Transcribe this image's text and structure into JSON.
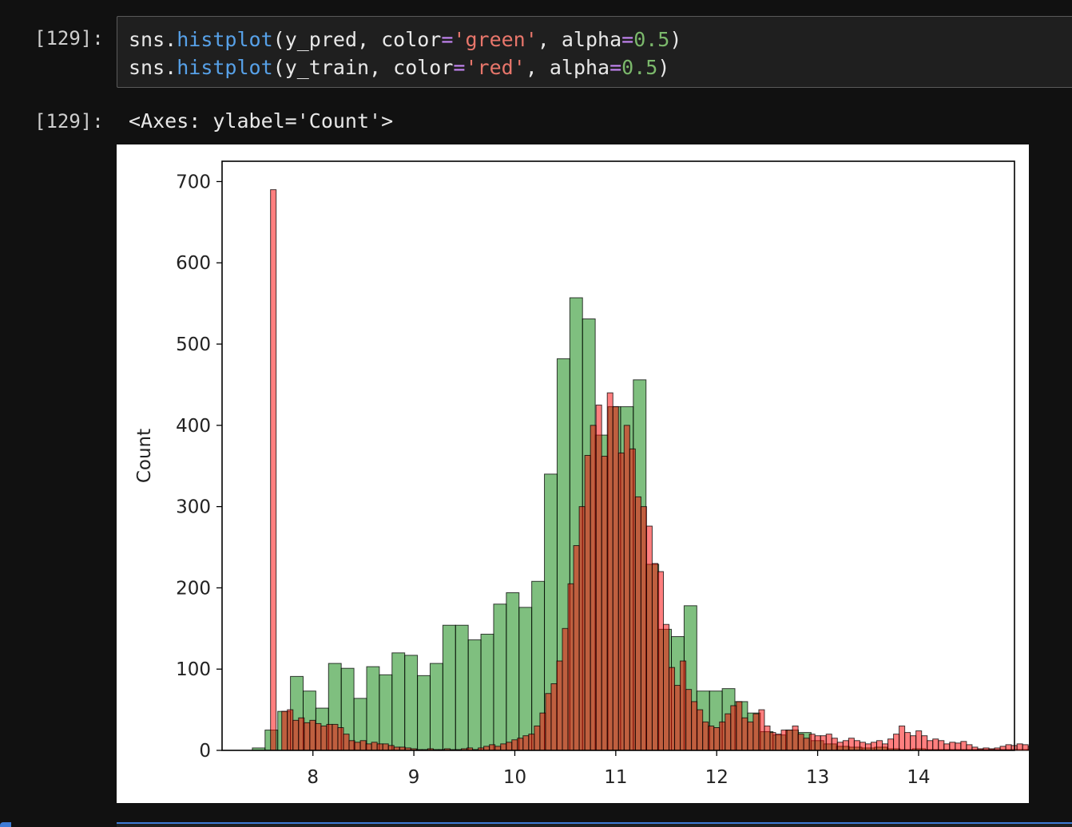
{
  "notebook": {
    "input_prompt": "[129]:",
    "output_prompt": "[129]:",
    "code_lines": [
      [
        {
          "t": "sns.",
          "c": "plain"
        },
        {
          "t": "histplot",
          "c": "fn"
        },
        {
          "t": "(y_pred, color",
          "c": "plain"
        },
        {
          "t": "=",
          "c": "op"
        },
        {
          "t": "'green'",
          "c": "str"
        },
        {
          "t": ", alpha",
          "c": "plain"
        },
        {
          "t": "=",
          "c": "op"
        },
        {
          "t": "0.5",
          "c": "num"
        },
        {
          "t": ")",
          "c": "plain"
        }
      ],
      [
        {
          "t": "sns.",
          "c": "plain"
        },
        {
          "t": "histplot",
          "c": "fn"
        },
        {
          "t": "(y_train, color",
          "c": "plain"
        },
        {
          "t": "=",
          "c": "op"
        },
        {
          "t": "'red'",
          "c": "str"
        },
        {
          "t": ", alpha",
          "c": "plain"
        },
        {
          "t": "=",
          "c": "op"
        },
        {
          "t": "0.5",
          "c": "num"
        },
        {
          "t": ")",
          "c": "plain"
        }
      ]
    ],
    "output_text": "<Axes: ylabel='Count'>"
  },
  "chart_data": {
    "type": "bar",
    "title": "",
    "xlabel": "",
    "ylabel": "Count",
    "xlim": [
      7.1,
      14.95
    ],
    "ylim": [
      0,
      725
    ],
    "xticks": [
      8,
      9,
      10,
      11,
      12,
      13,
      14
    ],
    "yticks": [
      0,
      100,
      200,
      300,
      400,
      500,
      600,
      700
    ],
    "grid": false,
    "legend": "none",
    "series": [
      {
        "name": "y_pred",
        "color": "#008000",
        "alpha": 0.5,
        "bin_start": 7.4,
        "bin_width": 0.1258,
        "values": [
          3,
          25,
          48,
          91,
          73,
          52,
          107,
          101,
          64,
          103,
          93,
          120,
          117,
          92,
          107,
          154,
          154,
          136,
          143,
          180,
          194,
          176,
          208,
          340,
          482,
          557,
          531,
          388,
          423,
          423,
          456,
          229,
          149,
          140,
          178,
          73,
          73,
          76,
          60,
          46,
          23,
          19,
          25,
          22,
          12,
          8,
          5,
          4,
          3,
          4,
          2,
          1,
          2,
          1,
          1,
          1,
          1,
          1,
          1,
          1,
          1,
          1
        ]
      },
      {
        "name": "y_train",
        "color": "#ff0000",
        "alpha": 0.5,
        "bin_start": 7.58,
        "bin_width": 0.0556,
        "values": [
          690,
          0,
          48,
          50,
          37,
          40,
          34,
          37,
          33,
          30,
          32,
          32,
          28,
          20,
          12,
          10,
          12,
          8,
          10,
          8,
          8,
          6,
          4,
          4,
          3,
          2,
          1,
          1,
          2,
          1,
          1,
          2,
          1,
          1,
          2,
          3,
          1,
          3,
          5,
          7,
          5,
          8,
          10,
          13,
          15,
          18,
          20,
          30,
          46,
          70,
          82,
          110,
          150,
          205,
          252,
          300,
          363,
          400,
          425,
          362,
          440,
          423,
          366,
          400,
          371,
          312,
          300,
          276,
          230,
          220,
          155,
          102,
          80,
          110,
          75,
          60,
          50,
          35,
          30,
          28,
          35,
          45,
          55,
          60,
          40,
          35,
          45,
          50,
          30,
          22,
          20,
          25,
          25,
          30,
          20,
          15,
          20,
          18,
          18,
          20,
          15,
          10,
          12,
          15,
          12,
          10,
          8,
          10,
          12,
          8,
          14,
          20,
          30,
          22,
          18,
          24,
          18,
          12,
          14,
          12,
          8,
          10,
          9,
          11,
          7,
          4,
          2,
          3,
          2,
          3,
          5,
          7,
          6,
          8,
          7,
          5
        ]
      }
    ]
  }
}
